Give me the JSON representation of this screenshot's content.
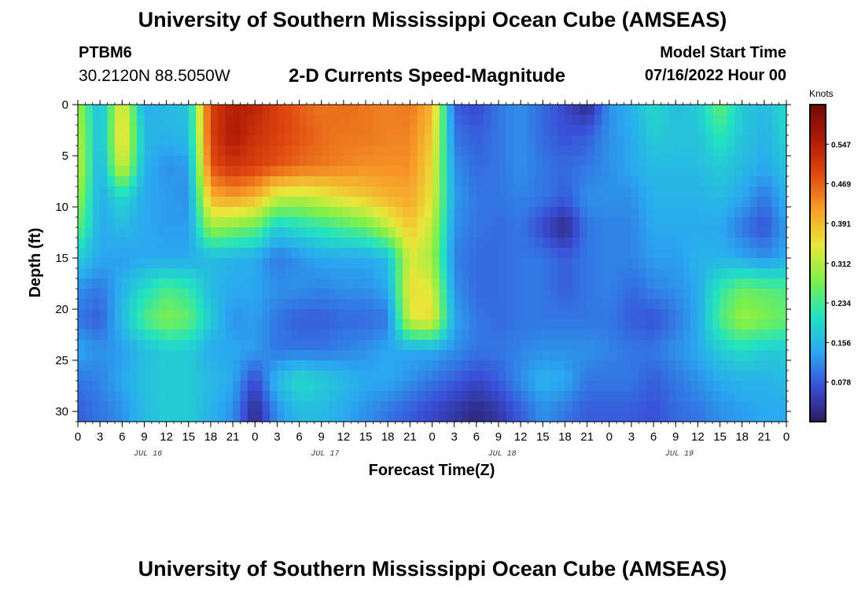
{
  "header": {
    "title": "University of Southern Mississippi Ocean Cube (AMSEAS)",
    "station_id": "PTBM6",
    "station_coords": "30.2120N  88.5050W",
    "subtitle": "2-D Currents Speed-Magnitude",
    "model_start_label": "Model Start Time",
    "model_start_value": "07/16/2022 Hour 00"
  },
  "footer": {
    "title": "University of Southern Mississippi Ocean Cube (AMSEAS)"
  },
  "chart_data": {
    "type": "heatmap",
    "title": "2-D Currents Speed-Magnitude",
    "xlabel": "Forecast Time(Z)",
    "ylabel": "Depth (ft)",
    "x_range_hours": [
      0,
      96
    ],
    "y_range_ft": [
      0,
      31
    ],
    "y_inverted": true,
    "x_tick_labels": [
      "0",
      "3",
      "6",
      "9",
      "12",
      "15",
      "18",
      "21",
      "0",
      "3",
      "6",
      "9",
      "12",
      "15",
      "18",
      "21",
      "0",
      "3",
      "6",
      "9",
      "12",
      "15",
      "18",
      "21",
      "0",
      "3",
      "6",
      "9",
      "12",
      "15",
      "18",
      "21",
      "0"
    ],
    "day_labels": [
      "JUL 16",
      "JUL 17",
      "JUL 18",
      "JUL 19"
    ],
    "y_tick_values": [
      0,
      5,
      10,
      15,
      20,
      25,
      30
    ],
    "y_tick_labels": [
      "0",
      "5",
      "10",
      "15",
      "20",
      "25",
      "30"
    ],
    "colorbar": {
      "unit": "Knots",
      "min": 0.0,
      "max": 0.625,
      "tick_labels": [
        "0.547",
        "0.469",
        "0.391",
        "0.312",
        "0.234",
        "0.156",
        "0.078"
      ],
      "colors": [
        "#2a1a5e",
        "#3a4fd8",
        "#2aa9f0",
        "#22e3c0",
        "#7ef04a",
        "#e8e83a",
        "#f8a02a",
        "#e04a10",
        "#b01a06",
        "#6e0a04"
      ]
    },
    "depths_ft": [
      0,
      3,
      6,
      9,
      12,
      15,
      18,
      21,
      24,
      27,
      30
    ],
    "times_hr": [
      0,
      3,
      6,
      9,
      12,
      15,
      18,
      21,
      24,
      27,
      30,
      33,
      36,
      39,
      42,
      45,
      48,
      51,
      54,
      57,
      60,
      63,
      66,
      69,
      72,
      75,
      78,
      81,
      84,
      87,
      90,
      93,
      96
    ],
    "values_knots": [
      [
        0.3,
        0.15,
        0.36,
        0.14,
        0.16,
        0.17,
        0.5,
        0.55,
        0.54,
        0.5,
        0.47,
        0.45,
        0.46,
        0.45,
        0.44,
        0.45,
        0.4,
        0.08,
        0.06,
        0.1,
        0.12,
        0.09,
        0.06,
        0.02,
        0.12,
        0.15,
        0.2,
        0.16,
        0.18,
        0.26,
        0.18,
        0.16,
        0.2
      ],
      [
        0.32,
        0.15,
        0.38,
        0.16,
        0.15,
        0.16,
        0.5,
        0.56,
        0.52,
        0.5,
        0.48,
        0.46,
        0.45,
        0.45,
        0.44,
        0.44,
        0.38,
        0.1,
        0.08,
        0.1,
        0.12,
        0.09,
        0.07,
        0.08,
        0.12,
        0.14,
        0.18,
        0.17,
        0.17,
        0.22,
        0.17,
        0.15,
        0.19
      ],
      [
        0.33,
        0.14,
        0.35,
        0.15,
        0.12,
        0.13,
        0.48,
        0.52,
        0.5,
        0.48,
        0.46,
        0.45,
        0.44,
        0.43,
        0.43,
        0.43,
        0.36,
        0.12,
        0.09,
        0.1,
        0.12,
        0.1,
        0.09,
        0.1,
        0.12,
        0.14,
        0.16,
        0.16,
        0.16,
        0.18,
        0.16,
        0.14,
        0.17
      ],
      [
        0.3,
        0.14,
        0.2,
        0.14,
        0.13,
        0.12,
        0.4,
        0.42,
        0.4,
        0.33,
        0.32,
        0.34,
        0.36,
        0.38,
        0.4,
        0.41,
        0.35,
        0.13,
        0.1,
        0.1,
        0.11,
        0.1,
        0.08,
        0.12,
        0.12,
        0.12,
        0.15,
        0.15,
        0.15,
        0.16,
        0.14,
        0.1,
        0.15
      ],
      [
        0.26,
        0.14,
        0.16,
        0.14,
        0.13,
        0.13,
        0.3,
        0.28,
        0.26,
        0.18,
        0.2,
        0.22,
        0.24,
        0.26,
        0.32,
        0.38,
        0.32,
        0.12,
        0.1,
        0.09,
        0.1,
        0.06,
        0.02,
        0.1,
        0.11,
        0.11,
        0.14,
        0.14,
        0.14,
        0.14,
        0.1,
        0.07,
        0.13
      ],
      [
        0.18,
        0.14,
        0.13,
        0.14,
        0.14,
        0.14,
        0.16,
        0.15,
        0.14,
        0.1,
        0.12,
        0.14,
        0.14,
        0.14,
        0.16,
        0.34,
        0.3,
        0.11,
        0.09,
        0.09,
        0.1,
        0.1,
        0.08,
        0.1,
        0.11,
        0.11,
        0.13,
        0.13,
        0.15,
        0.15,
        0.14,
        0.12,
        0.14
      ],
      [
        0.12,
        0.1,
        0.15,
        0.2,
        0.24,
        0.22,
        0.16,
        0.14,
        0.14,
        0.12,
        0.12,
        0.11,
        0.12,
        0.12,
        0.14,
        0.36,
        0.34,
        0.12,
        0.09,
        0.09,
        0.1,
        0.1,
        0.08,
        0.1,
        0.11,
        0.09,
        0.11,
        0.12,
        0.14,
        0.22,
        0.26,
        0.25,
        0.24
      ],
      [
        0.1,
        0.08,
        0.16,
        0.24,
        0.28,
        0.26,
        0.18,
        0.12,
        0.13,
        0.1,
        0.08,
        0.08,
        0.09,
        0.09,
        0.1,
        0.34,
        0.36,
        0.14,
        0.1,
        0.09,
        0.1,
        0.1,
        0.1,
        0.1,
        0.1,
        0.08,
        0.07,
        0.1,
        0.14,
        0.24,
        0.3,
        0.28,
        0.26
      ],
      [
        0.14,
        0.12,
        0.13,
        0.16,
        0.18,
        0.18,
        0.14,
        0.14,
        0.13,
        0.1,
        0.1,
        0.1,
        0.11,
        0.12,
        0.14,
        0.14,
        0.14,
        0.12,
        0.1,
        0.1,
        0.11,
        0.12,
        0.12,
        0.12,
        0.11,
        0.1,
        0.1,
        0.12,
        0.14,
        0.18,
        0.2,
        0.18,
        0.18
      ],
      [
        0.1,
        0.11,
        0.14,
        0.17,
        0.18,
        0.18,
        0.16,
        0.14,
        0.06,
        0.16,
        0.2,
        0.18,
        0.16,
        0.14,
        0.14,
        0.12,
        0.1,
        0.08,
        0.06,
        0.08,
        0.12,
        0.15,
        0.14,
        0.1,
        0.1,
        0.1,
        0.08,
        0.1,
        0.12,
        0.14,
        0.15,
        0.15,
        0.16
      ],
      [
        0.08,
        0.1,
        0.12,
        0.16,
        0.18,
        0.18,
        0.15,
        0.12,
        0.02,
        0.12,
        0.16,
        0.16,
        0.14,
        0.12,
        0.1,
        0.08,
        0.06,
        0.04,
        0.02,
        0.04,
        0.08,
        0.12,
        0.1,
        0.08,
        0.08,
        0.08,
        0.07,
        0.09,
        0.1,
        0.12,
        0.13,
        0.14,
        0.14
      ]
    ]
  }
}
